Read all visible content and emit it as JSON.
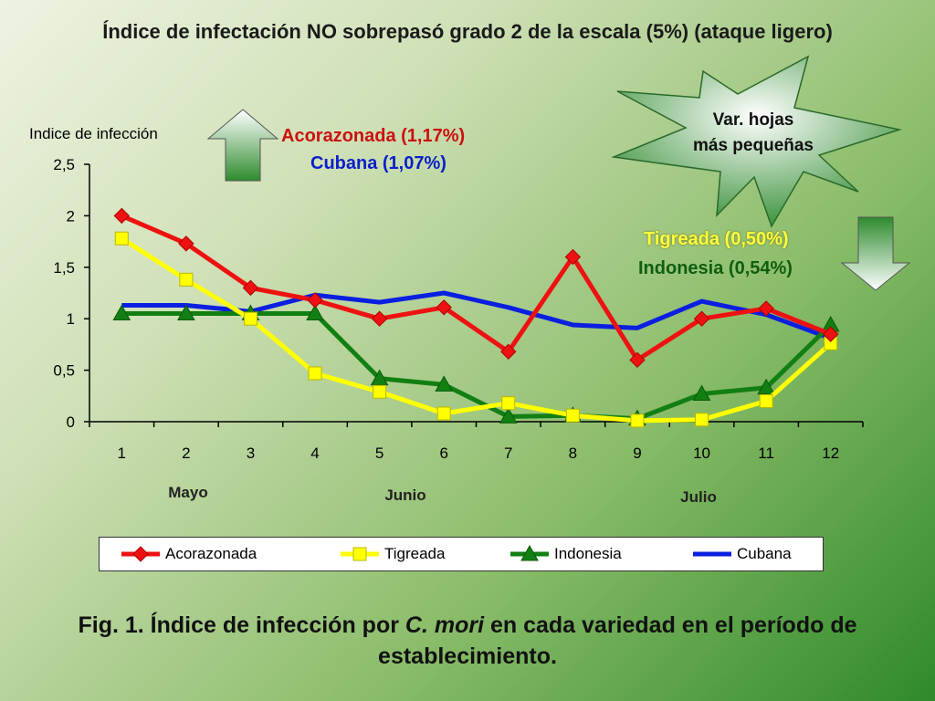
{
  "slide_title": "Índice de infectación NO sobrepasó grado 2 de la escala (5%) (ataque ligero)",
  "annotations": {
    "acorazonada": "Acorazonada (1,17%)",
    "cubana": "Cubana (1,07%)",
    "tigreada": "Tigreada (0,50%)",
    "indonesia": "Indonesia (0,54%)",
    "star_line1": "Var. hojas",
    "star_line2": "más pequeñas"
  },
  "caption": {
    "prefix": "Fig. 1. Índice de infección por ",
    "italic": "C. mori",
    "suffix": " en cada variedad en el período de establecimiento."
  },
  "months": [
    "Mayo",
    "Junio",
    "Julio"
  ],
  "colors": {
    "Acorazonada": "#ee1111",
    "Tigreada": "#ffff00",
    "Indonesia": "#127f12",
    "Cubana": "#0a1fe0",
    "arrow_up": "#2e8b2e",
    "arrow_down": "#2e8b2e"
  },
  "chart_data": {
    "type": "line",
    "title": "",
    "ylabel": "Indice de infección",
    "xlabel": "",
    "categories": [
      "1",
      "2",
      "3",
      "4",
      "5",
      "6",
      "7",
      "8",
      "9",
      "10",
      "11",
      "12"
    ],
    "ylim": [
      0,
      2.5
    ],
    "yticks": [
      "0",
      "0,5",
      "1",
      "1,5",
      "2",
      "2,5"
    ],
    "ytick_values": [
      0,
      0.5,
      1,
      1.5,
      2,
      2.5
    ],
    "grid": false,
    "legend_position": "bottom",
    "series": [
      {
        "name": "Acorazonada",
        "marker": "diamond",
        "values": [
          2.0,
          1.73,
          1.3,
          1.18,
          1.0,
          1.11,
          0.68,
          1.6,
          0.6,
          1.0,
          1.1,
          0.85
        ]
      },
      {
        "name": "Tigreada",
        "marker": "square",
        "values": [
          1.78,
          1.38,
          1.0,
          0.47,
          0.29,
          0.08,
          0.18,
          0.06,
          0.01,
          0.02,
          0.2,
          0.76
        ]
      },
      {
        "name": "Indonesia",
        "marker": "triangle",
        "values": [
          1.05,
          1.05,
          1.05,
          1.05,
          0.42,
          0.36,
          0.05,
          0.06,
          0.03,
          0.27,
          0.33,
          0.94
        ]
      },
      {
        "name": "Cubana",
        "marker": "none",
        "values": [
          1.13,
          1.13,
          1.07,
          1.23,
          1.16,
          1.25,
          1.11,
          0.94,
          0.91,
          1.17,
          1.04,
          0.81
        ]
      }
    ]
  }
}
